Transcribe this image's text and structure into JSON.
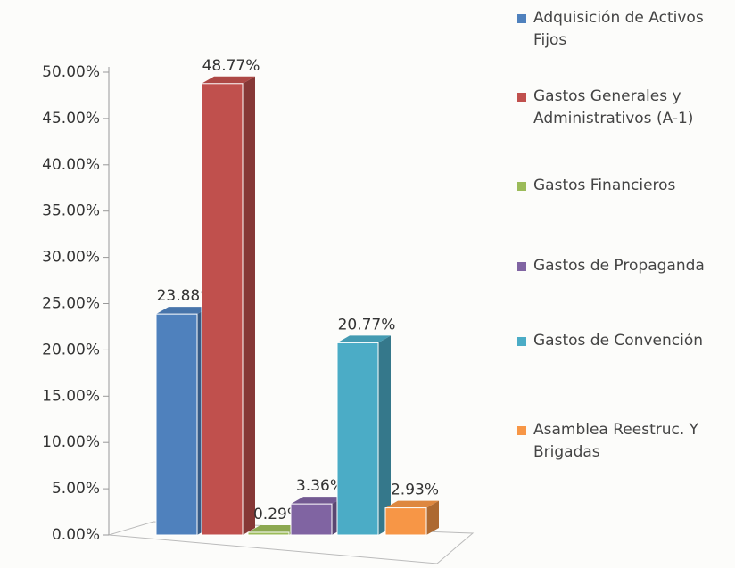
{
  "chart_data": {
    "type": "bar",
    "series": [
      {
        "name": "Adquisición de Activos Fijos",
        "color": "#4f81bd",
        "values": [
          23.88
        ],
        "value_labels": [
          "23.88%"
        ]
      },
      {
        "name": "Gastos Generales y Administrativos (A-1)",
        "color": "#c0504d",
        "values": [
          48.77
        ],
        "value_labels": [
          "48.77%"
        ]
      },
      {
        "name": "Gastos Financieros",
        "color": "#9bbb59",
        "values": [
          0.29
        ],
        "value_labels": [
          "0.29%"
        ]
      },
      {
        "name": "Gastos de Propaganda",
        "color": "#8064a2",
        "values": [
          3.36
        ],
        "value_labels": [
          "3.36%"
        ]
      },
      {
        "name": "Gastos de Convención",
        "color": "#4bacc6",
        "values": [
          20.77
        ],
        "value_labels": [
          "20.77%"
        ]
      },
      {
        "name": "Asamblea Reestruc. Y Brigadas",
        "color": "#f79646",
        "values": [
          2.93
        ],
        "value_labels": [
          "2.93%"
        ]
      }
    ],
    "ylim": [
      0,
      50
    ],
    "yticks": [
      {
        "value": 0,
        "label": "0.00%"
      },
      {
        "value": 5,
        "label": "5.00%"
      },
      {
        "value": 10,
        "label": "10.00%"
      },
      {
        "value": 15,
        "label": "15.00%"
      },
      {
        "value": 20,
        "label": "20.00%"
      },
      {
        "value": 25,
        "label": "25.00%"
      },
      {
        "value": 30,
        "label": "30.00%"
      },
      {
        "value": 35,
        "label": "35.00%"
      },
      {
        "value": 40,
        "label": "40.00%"
      },
      {
        "value": 45,
        "label": "45.00%"
      },
      {
        "value": 50,
        "label": "50.00%"
      }
    ],
    "legend": "right"
  }
}
